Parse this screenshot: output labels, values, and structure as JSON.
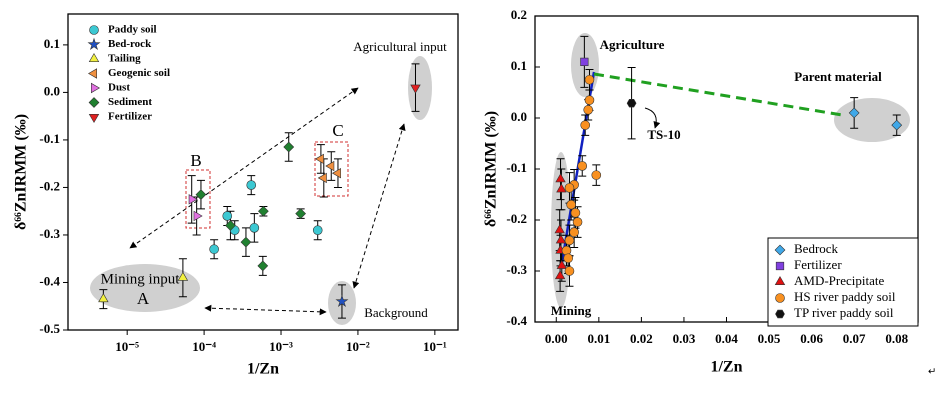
{
  "chart_data": [
    {
      "type": "scatter",
      "xscale": "log",
      "xlim": [
        1.7e-06,
        0.2
      ],
      "ylim": [
        -0.5,
        0.165
      ],
      "xticks": [
        {
          "value": 1e-05,
          "label": "10⁻⁵"
        },
        {
          "value": 0.0001,
          "label": "10⁻⁴"
        },
        {
          "value": 0.001,
          "label": "10⁻³"
        },
        {
          "value": 0.01,
          "label": "10⁻²"
        },
        {
          "value": 0.1,
          "label": "10⁻¹"
        }
      ],
      "yticks": [
        0.1,
        {
          "value": 0,
          "label": "0.0"
        },
        -0.1,
        -0.2,
        -0.3,
        -0.4,
        -0.5
      ],
      "x_label": "1/Zn",
      "y_label": "δ⁶⁶ZnIRMM (‰)",
      "legend": "upper left",
      "annotations": [
        "Agricultural input",
        "B",
        "C",
        "Mining input",
        "A",
        "Background"
      ],
      "series": [
        {
          "name": "Paddy soil",
          "color": "#3cc8d2",
          "marker": "circle",
          "x": [
            0.000135,
            0.0002,
            0.00025,
            0.00041,
            0.00045,
            0.003
          ],
          "values": [
            -0.33,
            -0.26,
            -0.29,
            -0.195,
            -0.285,
            -0.29
          ],
          "errors": [
            0.02,
            0.02,
            0.02,
            0.02,
            0.03,
            0.02
          ]
        },
        {
          "name": "Bed-rock",
          "color": "#2050c0",
          "marker": "star",
          "x": [
            0.0062
          ],
          "values": [
            -0.44
          ],
          "errors": [
            0.035
          ]
        },
        {
          "name": "Tailing",
          "color": "#f2f040",
          "marker": "triangle-up",
          "x": [
            4.9e-06,
            5.3e-05
          ],
          "values": [
            -0.435,
            -0.39
          ],
          "errors": [
            0.02,
            0.04
          ]
        },
        {
          "name": "Geogenic soil",
          "color": "#f09040",
          "marker": "triangle-left",
          "x": [
            0.0033,
            0.0036,
            0.0045,
            0.0055
          ],
          "values": [
            -0.14,
            -0.18,
            -0.155,
            -0.17
          ],
          "errors": [
            0.03,
            0.04,
            0.03,
            0.03
          ]
        },
        {
          "name": "Dust",
          "color": "#e070e0",
          "marker": "triangle-right",
          "x": [
            6.9e-05,
            8e-05
          ],
          "values": [
            -0.225,
            -0.26
          ],
          "errors": [
            0.05,
            0.04
          ]
        },
        {
          "name": "Sediment",
          "color": "#208030",
          "marker": "diamond",
          "x": [
            9.1e-05,
            0.00022,
            0.00035,
            0.00059,
            0.00058,
            0.00126,
            0.0018
          ],
          "values": [
            -0.215,
            -0.28,
            -0.315,
            -0.25,
            -0.365,
            -0.115,
            -0.255
          ],
          "errors": [
            0.03,
            0.03,
            0.03,
            0.01,
            0.02,
            0.03,
            0.01
          ]
        },
        {
          "name": "Fertilizer",
          "color": "#e02020",
          "marker": "triangle-down",
          "x": [
            0.056
          ],
          "values": [
            0.01
          ],
          "errors": [
            0.05
          ]
        }
      ]
    },
    {
      "type": "scatter",
      "xlim": [
        -0.005,
        0.085
      ],
      "ylim": [
        -0.4,
        0.2
      ],
      "xticks": [
        {
          "value": 0,
          "label": "0.00"
        },
        0.01,
        0.02,
        0.03,
        0.04,
        0.05,
        0.06,
        0.07,
        0.08
      ],
      "yticks": [
        0.2,
        0.1,
        {
          "value": 0,
          "label": "0.0"
        },
        -0.1,
        -0.2,
        -0.3,
        -0.4
      ],
      "x_label": "1/Zn",
      "y_label": "δ⁶⁶ZnIRMM (‰)",
      "legend": "lower right",
      "annotations": [
        "Agriculture",
        "Parent material",
        "TS-10",
        "Mining"
      ],
      "series": [
        {
          "name": "Bedrock",
          "color": "#40a8e8",
          "marker": "diamond",
          "x": [
            0.07,
            0.08
          ],
          "values": [
            0.01,
            -0.014
          ],
          "errors": [
            0.03,
            0.02
          ]
        },
        {
          "name": "Fertilizer",
          "color": "#8040e0",
          "marker": "square",
          "x": [
            0.0066
          ],
          "values": [
            0.11
          ],
          "errors": [
            0.05
          ]
        },
        {
          "name": "AMD-Precipitate",
          "color": "#e01010",
          "marker": "triangle-up",
          "x": [
            0.001,
            0.0012,
            0.0008,
            0.001,
            0.0013,
            0.0009,
            0.0011
          ],
          "values": [
            -0.12,
            -0.14,
            -0.22,
            -0.26,
            -0.29,
            -0.31,
            -0.24
          ],
          "errors": [
            0.04,
            0.04,
            0.04,
            0.03,
            0.03,
            0.03,
            0.04
          ]
        },
        {
          "name": "HS river paddy soil",
          "color": "#f89020",
          "marker": "circle",
          "x": [
            0.0078,
            0.0078,
            0.0075,
            0.0068,
            0.0061,
            0.0094,
            0.0042,
            0.0031,
            0.0035,
            0.0045,
            0.005,
            0.0042,
            0.0031,
            0.0024,
            0.0028,
            0.0031
          ],
          "values": [
            0.075,
            0.035,
            0.016,
            -0.014,
            -0.094,
            -0.112,
            -0.131,
            -0.137,
            -0.17,
            -0.186,
            -0.204,
            -0.224,
            -0.24,
            -0.26,
            -0.275,
            -0.3
          ],
          "errors": [
            0.02,
            0.02,
            0.02,
            0.02,
            0.02,
            0.02,
            0.03,
            0.03,
            0.03,
            0.03,
            0.03,
            0.03,
            0.03,
            0.03,
            0.03,
            0.03
          ]
        },
        {
          "name": "TP river paddy soil",
          "color": "#111111",
          "marker": "hexagon",
          "x": [
            0.0177
          ],
          "values": [
            0.029
          ],
          "errors": [
            0.07
          ]
        }
      ]
    }
  ],
  "paragraph_mark": "↵"
}
